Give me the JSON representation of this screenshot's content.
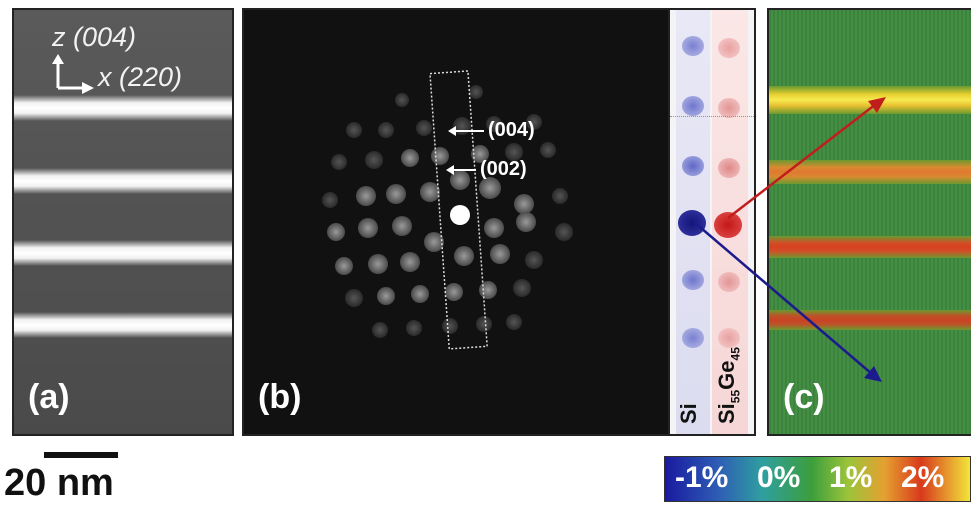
{
  "panel_a": {
    "letter": "(a)",
    "axis_z": "z (004)",
    "axis_x": "x (220)"
  },
  "panel_b": {
    "letter": "(b)",
    "annotation_004": "(004)",
    "annotation_002": "(002)"
  },
  "spots_panel": {
    "label_004": "(004)",
    "label_si": "Si",
    "label_sige_base": "Si",
    "label_sige_sub1": "55",
    "label_sige_ge": "Ge",
    "label_sige_sub2": "45"
  },
  "panel_c": {
    "letter": "(c)"
  },
  "scale": {
    "label": "20 nm"
  },
  "colorbar": {
    "ticks": [
      "-1%",
      "0%",
      "1%",
      "2%"
    ]
  },
  "colors": {
    "si_spot": "#1f1f9a",
    "sige_spot": "#d01c1c",
    "arrow_red": "#c21d1d",
    "arrow_blue": "#1b1b8e"
  }
}
